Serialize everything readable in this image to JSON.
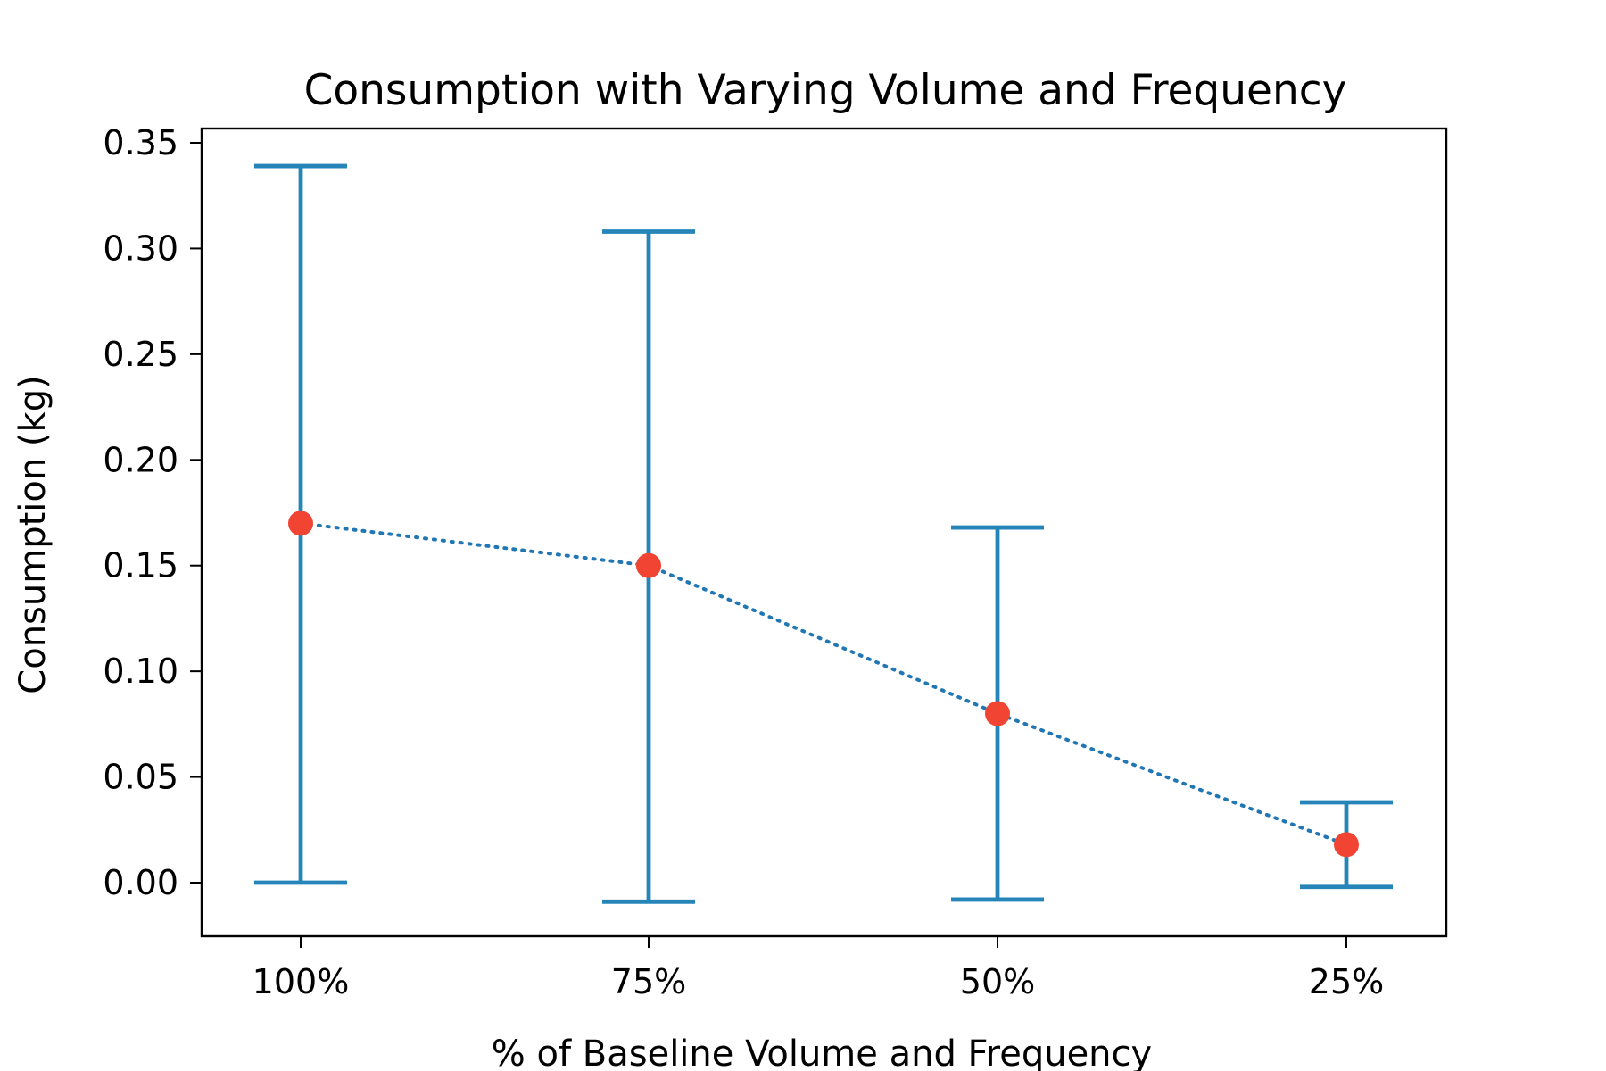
{
  "chart_data": {
    "type": "errorbar-line",
    "title": "Consumption with Varying Volume and Frequency",
    "xlabel": "% of Baseline Volume and Frequency",
    "ylabel": "Consumption (kg)",
    "categories": [
      "100%",
      "75%",
      "50%",
      "25%"
    ],
    "values": [
      0.17,
      0.15,
      0.08,
      0.018
    ],
    "error_lower": [
      0.0,
      -0.009,
      -0.008,
      -0.002
    ],
    "error_upper": [
      0.339,
      0.308,
      0.168,
      0.038
    ],
    "ylim": [
      -0.026,
      0.356
    ],
    "yticks": [
      "0.00",
      "0.05",
      "0.10",
      "0.15",
      "0.20",
      "0.25",
      "0.30",
      "0.35"
    ],
    "ytick_values": [
      0.0,
      0.05,
      0.1,
      0.15,
      0.2,
      0.25,
      0.3,
      0.35
    ],
    "grid": false,
    "line_style": "dotted",
    "colors": {
      "errorbar": "#2585b8",
      "line": "#2177b4",
      "marker": "#f24433",
      "axis": "#000000"
    }
  }
}
